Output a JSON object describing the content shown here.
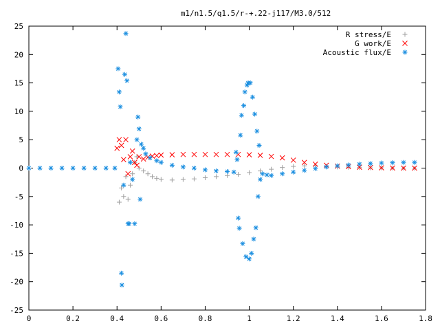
{
  "chart_data": {
    "type": "scatter",
    "title": "m1/n1.5/q1.5/r-+.22-j117/M3.0/512",
    "xlabel": "",
    "ylabel": "",
    "xlim": [
      0,
      1.8
    ],
    "ylim": [
      -25,
      25
    ],
    "xticks": [
      0,
      0.2,
      0.4,
      0.6,
      0.8,
      1,
      1.2,
      1.4,
      1.6,
      1.8
    ],
    "xtick_labels": [
      "0",
      "0.2",
      "0.4",
      "0.6",
      "0.8",
      "1",
      "1.2",
      "1.4",
      "1.6",
      "1.8"
    ],
    "yticks": [
      -25,
      -20,
      -15,
      -10,
      -5,
      0,
      5,
      10,
      15,
      20,
      25
    ],
    "ytick_labels": [
      "-25",
      "-20",
      "-15",
      "-10",
      "-5",
      "0",
      "5",
      "10",
      "15",
      "20",
      "25"
    ],
    "grid": false,
    "legend_position": "top-right",
    "series": [
      {
        "name": "R stress/E",
        "color": "#a0a0a0",
        "marker": "plus",
        "points": [
          [
            0.41,
            -6.0
          ],
          [
            0.42,
            -3.5
          ],
          [
            0.43,
            -5.0
          ],
          [
            0.44,
            -1.5
          ],
          [
            0.45,
            -5.5
          ],
          [
            0.46,
            -3.0
          ],
          [
            0.47,
            -1.0
          ],
          [
            0.48,
            1.0
          ],
          [
            0.49,
            2.0
          ],
          [
            0.5,
            0.0
          ],
          [
            0.52,
            -0.5
          ],
          [
            0.54,
            -1.0
          ],
          [
            0.56,
            -1.5
          ],
          [
            0.58,
            -1.8
          ],
          [
            0.6,
            -2.0
          ],
          [
            0.65,
            -2.1
          ],
          [
            0.7,
            -2.0
          ],
          [
            0.75,
            -1.9
          ],
          [
            0.8,
            -1.7
          ],
          [
            0.85,
            -1.5
          ],
          [
            0.9,
            -1.3
          ],
          [
            0.95,
            -1.1
          ],
          [
            1.0,
            -0.8
          ],
          [
            1.05,
            -0.5
          ],
          [
            1.1,
            -0.2
          ],
          [
            1.15,
            0.1
          ],
          [
            1.2,
            0.3
          ],
          [
            1.25,
            0.4
          ],
          [
            1.3,
            0.4
          ],
          [
            1.35,
            0.3
          ],
          [
            1.4,
            0.2
          ],
          [
            1.45,
            0.15
          ],
          [
            1.5,
            0.1
          ],
          [
            1.55,
            0.05
          ],
          [
            1.6,
            0.05
          ],
          [
            1.65,
            0.02
          ],
          [
            1.7,
            0.0
          ],
          [
            1.75,
            0.0
          ]
        ]
      },
      {
        "name": "G work/E",
        "color": "#ff0000",
        "marker": "x",
        "points": [
          [
            0.4,
            3.5
          ],
          [
            0.41,
            5.0
          ],
          [
            0.42,
            4.0
          ],
          [
            0.43,
            1.5
          ],
          [
            0.44,
            5.0
          ],
          [
            0.45,
            -1.0
          ],
          [
            0.46,
            2.0
          ],
          [
            0.47,
            3.0
          ],
          [
            0.48,
            1.0
          ],
          [
            0.49,
            0.5
          ],
          [
            0.5,
            2.0
          ],
          [
            0.52,
            1.6
          ],
          [
            0.54,
            1.9
          ],
          [
            0.56,
            2.1
          ],
          [
            0.58,
            2.2
          ],
          [
            0.6,
            2.3
          ],
          [
            0.65,
            2.35
          ],
          [
            0.7,
            2.4
          ],
          [
            0.75,
            2.4
          ],
          [
            0.8,
            2.4
          ],
          [
            0.85,
            2.4
          ],
          [
            0.9,
            2.4
          ],
          [
            0.95,
            2.4
          ],
          [
            1.0,
            2.35
          ],
          [
            1.05,
            2.25
          ],
          [
            1.1,
            2.05
          ],
          [
            1.15,
            1.8
          ],
          [
            1.2,
            1.4
          ],
          [
            1.25,
            1.0
          ],
          [
            1.3,
            0.7
          ],
          [
            1.35,
            0.5
          ],
          [
            1.4,
            0.35
          ],
          [
            1.45,
            0.25
          ],
          [
            1.5,
            0.15
          ],
          [
            1.55,
            0.1
          ],
          [
            1.6,
            0.05
          ],
          [
            1.65,
            0.02
          ],
          [
            1.7,
            0.0
          ],
          [
            1.75,
            0.0
          ]
        ]
      },
      {
        "name": "Acoustic flux/E",
        "color": "#1a8ee0",
        "marker": "star",
        "points": [
          [
            0.0,
            0.0
          ],
          [
            0.05,
            0.0
          ],
          [
            0.1,
            0.0
          ],
          [
            0.15,
            0.0
          ],
          [
            0.2,
            0.0
          ],
          [
            0.25,
            0.0
          ],
          [
            0.3,
            0.0
          ],
          [
            0.35,
            0.0
          ],
          [
            0.39,
            0.0
          ],
          [
            0.405,
            17.5
          ],
          [
            0.41,
            13.4
          ],
          [
            0.415,
            10.8
          ],
          [
            0.42,
            -18.5
          ],
          [
            0.422,
            -20.6
          ],
          [
            0.43,
            -3.0
          ],
          [
            0.435,
            16.5
          ],
          [
            0.44,
            23.7
          ],
          [
            0.445,
            15.4
          ],
          [
            0.45,
            -9.8
          ],
          [
            0.455,
            -9.8
          ],
          [
            0.46,
            1.0
          ],
          [
            0.47,
            -2.0
          ],
          [
            0.48,
            -9.8
          ],
          [
            0.49,
            5.0
          ],
          [
            0.495,
            9.0
          ],
          [
            0.5,
            6.9
          ],
          [
            0.505,
            -5.5
          ],
          [
            0.51,
            4.2
          ],
          [
            0.52,
            3.5
          ],
          [
            0.53,
            2.5
          ],
          [
            0.55,
            1.8
          ],
          [
            0.58,
            1.3
          ],
          [
            0.6,
            1.0
          ],
          [
            0.65,
            0.5
          ],
          [
            0.7,
            0.2
          ],
          [
            0.75,
            0.0
          ],
          [
            0.8,
            -0.3
          ],
          [
            0.85,
            -0.5
          ],
          [
            0.9,
            -0.6
          ],
          [
            0.93,
            -0.7
          ],
          [
            0.94,
            2.8
          ],
          [
            0.945,
            1.5
          ],
          [
            0.95,
            -8.8
          ],
          [
            0.955,
            -10.6
          ],
          [
            0.96,
            5.8
          ],
          [
            0.965,
            9.3
          ],
          [
            0.97,
            -13.3
          ],
          [
            0.975,
            11.0
          ],
          [
            0.98,
            13.4
          ],
          [
            0.985,
            -15.6
          ],
          [
            0.99,
            14.6
          ],
          [
            0.995,
            15.0
          ],
          [
            1.0,
            -16.0
          ],
          [
            1.005,
            15.0
          ],
          [
            1.01,
            -15.0
          ],
          [
            1.015,
            12.5
          ],
          [
            1.02,
            -12.5
          ],
          [
            1.025,
            9.5
          ],
          [
            1.03,
            -10.5
          ],
          [
            1.035,
            6.5
          ],
          [
            1.04,
            -5.0
          ],
          [
            1.045,
            4.0
          ],
          [
            1.05,
            -2.0
          ],
          [
            1.06,
            -1.0
          ],
          [
            1.08,
            -1.2
          ],
          [
            1.1,
            -1.3
          ],
          [
            1.15,
            -1.0
          ],
          [
            1.2,
            -0.7
          ],
          [
            1.25,
            -0.4
          ],
          [
            1.3,
            -0.1
          ],
          [
            1.35,
            0.2
          ],
          [
            1.4,
            0.4
          ],
          [
            1.45,
            0.55
          ],
          [
            1.5,
            0.7
          ],
          [
            1.55,
            0.8
          ],
          [
            1.6,
            0.9
          ],
          [
            1.65,
            0.95
          ],
          [
            1.7,
            1.0
          ],
          [
            1.75,
            1.0
          ]
        ]
      }
    ]
  }
}
